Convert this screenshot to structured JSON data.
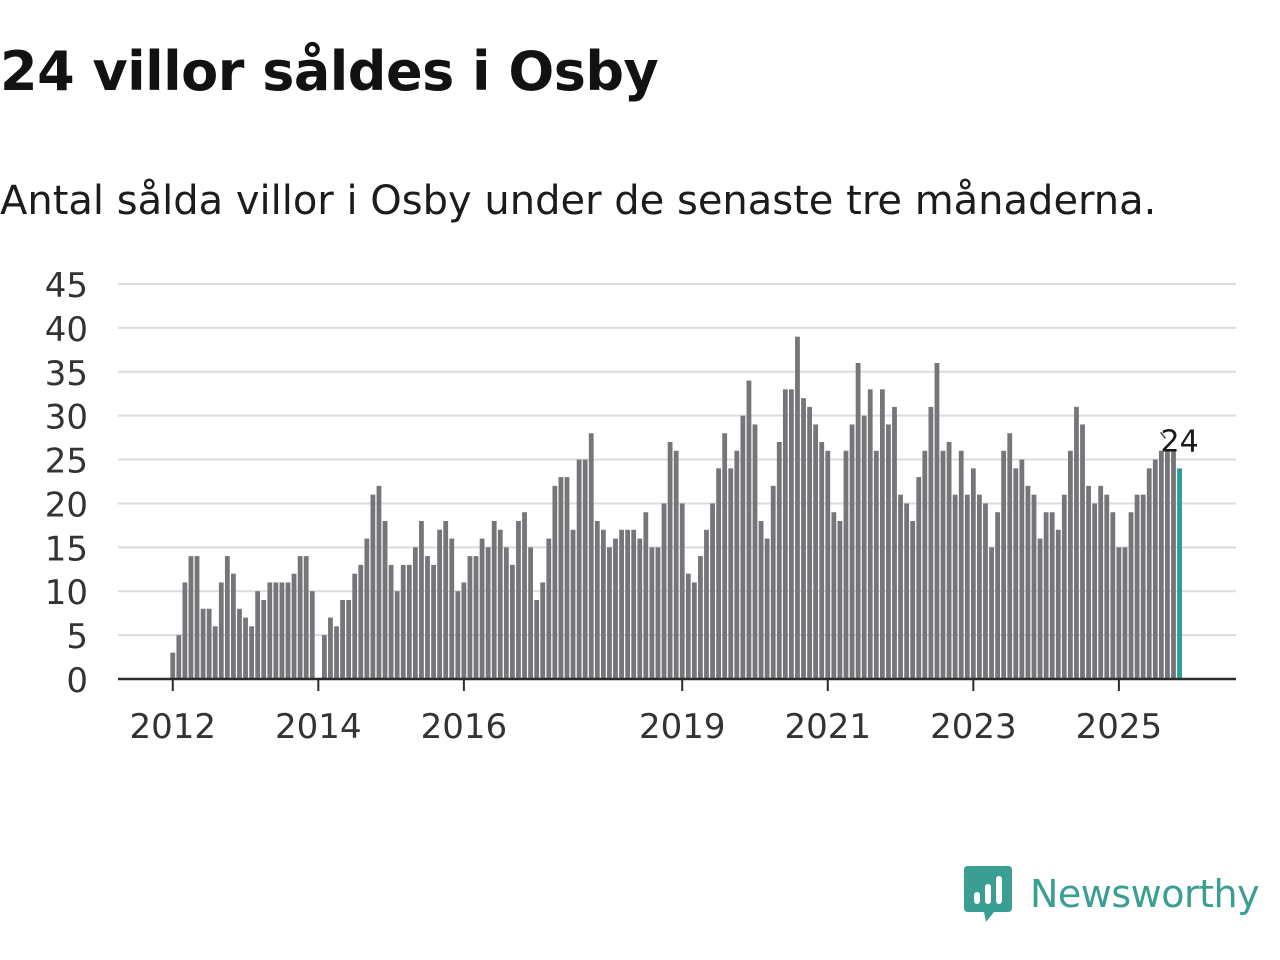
{
  "title": "24 villor såldes i Osby",
  "subtitle": "Antal sålda villor i Osby under de senaste tre månaderna.",
  "brand": "Newsworthy",
  "colors": {
    "bar": "#76767a",
    "highlight": "#24a096",
    "grid": "#dcdcdc",
    "axis": "#2b2b2b",
    "brand": "#3a9e92"
  },
  "chart_data": {
    "type": "bar",
    "title": "24 villor såldes i Osby",
    "subtitle": "Antal sålda villor i Osby under de senaste tre månaderna.",
    "xlabel": "",
    "ylabel": "",
    "ylim": [
      0,
      45
    ],
    "yticks": [
      0,
      5,
      10,
      15,
      20,
      25,
      30,
      35,
      40,
      45
    ],
    "grid": true,
    "x_start": "2011-09",
    "xticks": [
      {
        "label": "2012",
        "index": 4
      },
      {
        "label": "2014",
        "index": 28
      },
      {
        "label": "2016",
        "index": 52
      },
      {
        "label": "2019",
        "index": 88
      },
      {
        "label": "2021",
        "index": 112
      },
      {
        "label": "2023",
        "index": 136
      },
      {
        "label": "2025",
        "index": 160
      }
    ],
    "values": [
      0,
      0,
      0,
      0,
      3,
      5,
      11,
      14,
      14,
      8,
      8,
      6,
      11,
      14,
      12,
      8,
      7,
      6,
      10,
      9,
      11,
      11,
      11,
      11,
      12,
      14,
      14,
      10,
      0,
      5,
      7,
      6,
      9,
      9,
      12,
      13,
      16,
      21,
      22,
      18,
      13,
      10,
      13,
      13,
      15,
      18,
      14,
      13,
      17,
      18,
      16,
      10,
      11,
      14,
      14,
      16,
      15,
      18,
      17,
      15,
      13,
      18,
      19,
      15,
      9,
      11,
      16,
      22,
      23,
      23,
      17,
      25,
      25,
      28,
      18,
      17,
      15,
      16,
      17,
      17,
      17,
      16,
      19,
      15,
      15,
      20,
      27,
      26,
      20,
      12,
      11,
      14,
      17,
      20,
      24,
      28,
      24,
      26,
      30,
      34,
      29,
      18,
      16,
      22,
      27,
      33,
      33,
      39,
      32,
      31,
      29,
      27,
      26,
      19,
      18,
      26,
      29,
      36,
      30,
      33,
      26,
      33,
      29,
      31,
      21,
      20,
      18,
      23,
      26,
      31,
      36,
      26,
      27,
      21,
      26,
      21,
      24,
      21,
      20,
      15,
      19,
      26,
      28,
      24,
      25,
      22,
      21,
      16,
      19,
      19,
      17,
      21,
      26,
      31,
      29,
      22,
      20,
      22,
      21,
      19,
      15,
      15,
      19,
      21,
      21,
      24,
      25,
      26,
      26,
      26,
      24
    ],
    "highlight_last": true,
    "annotation": "24"
  }
}
